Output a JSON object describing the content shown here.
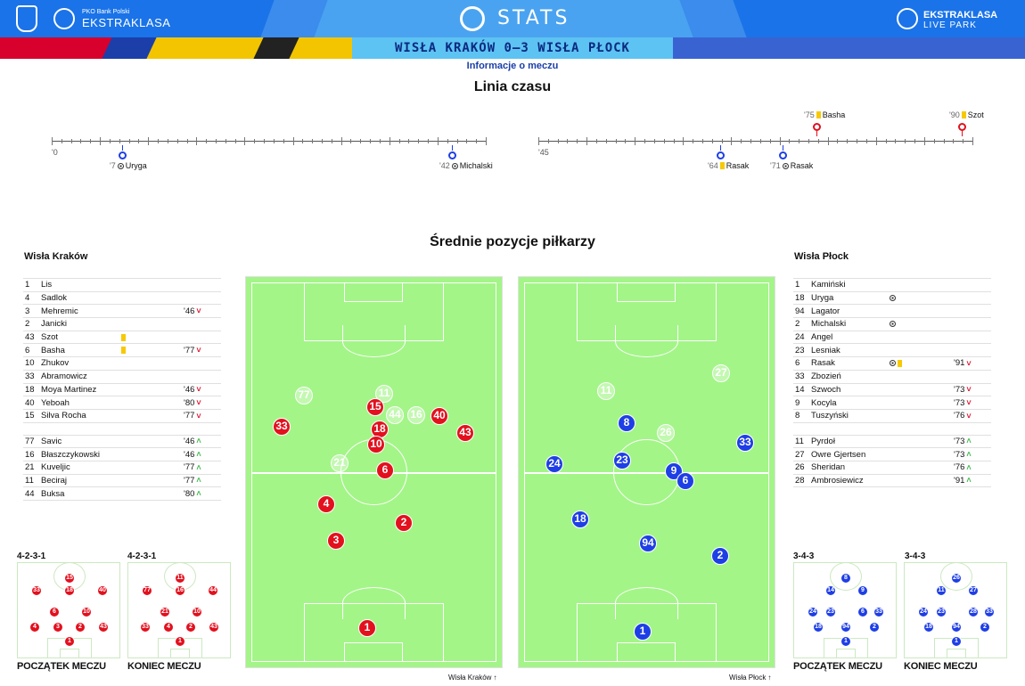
{
  "header": {
    "brand_small": "PKO Bank Polski",
    "brand": "EKSTRAKLASA",
    "stats": "STATS",
    "right_logo_top": "EKSTRAKLASA",
    "right_logo_bottom": "LIVE PARK"
  },
  "match": {
    "title": "WISŁA KRAKÓW 0–3 WISŁA PŁOCK",
    "info": "Informacje o meczu"
  },
  "timeline": {
    "title": "Linia czasu",
    "first_half_start": "'0",
    "second_half_start": "'45",
    "events": [
      {
        "minute": "'7",
        "player": "Uryga",
        "type": "goal",
        "team": "home-side",
        "half": 1
      },
      {
        "minute": "'42",
        "player": "Michalski",
        "type": "goal",
        "half": 1
      },
      {
        "minute": "'64",
        "player": "Rasak",
        "type": "yellow",
        "half": 2
      },
      {
        "minute": "'71",
        "player": "Rasak",
        "type": "goal",
        "half": 2
      },
      {
        "minute": "'75",
        "player": "Basha",
        "type": "yellow",
        "half": 2
      },
      {
        "minute": "'90",
        "player": "Szot",
        "type": "yellow",
        "half": 2
      }
    ]
  },
  "positions_title": "Średnie pozycje piłkarzy",
  "home": {
    "name": "Wisła Kraków",
    "starters": [
      {
        "num": "1",
        "name": "Lis",
        "mark": "",
        "sub": "",
        "dir": ""
      },
      {
        "num": "4",
        "name": "Sadlok",
        "mark": "",
        "sub": "",
        "dir": ""
      },
      {
        "num": "3",
        "name": "Mehremic",
        "mark": "",
        "sub": "'46",
        "dir": "down"
      },
      {
        "num": "2",
        "name": "Janicki",
        "mark": "",
        "sub": "",
        "dir": ""
      },
      {
        "num": "43",
        "name": "Szot",
        "mark": "yellow",
        "sub": "",
        "dir": ""
      },
      {
        "num": "6",
        "name": "Basha",
        "mark": "yellow",
        "sub": "'77",
        "dir": "down"
      },
      {
        "num": "10",
        "name": "Zhukov",
        "mark": "",
        "sub": "",
        "dir": ""
      },
      {
        "num": "33",
        "name": "Abramowicz",
        "mark": "",
        "sub": "",
        "dir": ""
      },
      {
        "num": "18",
        "name": "Moya Martinez",
        "mark": "",
        "sub": "'46",
        "dir": "down"
      },
      {
        "num": "40",
        "name": "Yeboah",
        "mark": "",
        "sub": "'80",
        "dir": "down"
      },
      {
        "num": "15",
        "name": "Silva Rocha",
        "mark": "",
        "sub": "'77",
        "dir": "down"
      }
    ],
    "subs": [
      {
        "num": "77",
        "name": "Savic",
        "sub": "'46",
        "dir": "up"
      },
      {
        "num": "16",
        "name": "Błaszczykowski",
        "sub": "'46",
        "dir": "up"
      },
      {
        "num": "21",
        "name": "Kuveljic",
        "sub": "'77",
        "dir": "up"
      },
      {
        "num": "11",
        "name": "Beciraj",
        "sub": "'77",
        "dir": "up"
      },
      {
        "num": "44",
        "name": "Buksa",
        "sub": "'80",
        "dir": "up"
      }
    ],
    "formation_start": "4-2-3-1",
    "formation_end": "4-2-3-1",
    "footer": "Wisła Kraków"
  },
  "away": {
    "name": "Wisła Płock",
    "starters": [
      {
        "num": "1",
        "name": "Kamiński",
        "mark": "",
        "sub": "",
        "dir": ""
      },
      {
        "num": "18",
        "name": "Uryga",
        "mark": "goal",
        "sub": "",
        "dir": ""
      },
      {
        "num": "94",
        "name": "Lagator",
        "mark": "",
        "sub": "",
        "dir": ""
      },
      {
        "num": "2",
        "name": "Michalski",
        "mark": "goal",
        "sub": "",
        "dir": ""
      },
      {
        "num": "24",
        "name": "Angel",
        "mark": "",
        "sub": "",
        "dir": ""
      },
      {
        "num": "23",
        "name": "Lesniak",
        "mark": "",
        "sub": "",
        "dir": ""
      },
      {
        "num": "6",
        "name": "Rasak",
        "mark": "goal-yellow",
        "sub": "'91",
        "dir": "down"
      },
      {
        "num": "33",
        "name": "Zbozień",
        "mark": "",
        "sub": "",
        "dir": ""
      },
      {
        "num": "14",
        "name": "Szwoch",
        "mark": "",
        "sub": "'73",
        "dir": "down"
      },
      {
        "num": "9",
        "name": "Kocyla",
        "mark": "",
        "sub": "'73",
        "dir": "down"
      },
      {
        "num": "8",
        "name": "Tuszyński",
        "mark": "",
        "sub": "'76",
        "dir": "down"
      }
    ],
    "subs": [
      {
        "num": "11",
        "name": "Pyrdoł",
        "sub": "'73",
        "dir": "up"
      },
      {
        "num": "27",
        "name": "Owre Gjertsen",
        "sub": "'73",
        "dir": "up"
      },
      {
        "num": "26",
        "name": "Sheridan",
        "sub": "'76",
        "dir": "up"
      },
      {
        "num": "28",
        "name": "Ambrosiewicz",
        "sub": "'91",
        "dir": "up"
      }
    ],
    "formation_start": "3-4-3",
    "formation_end": "3-4-3",
    "footer": "Wisła Płock"
  },
  "mini_labels": {
    "start": "POCZĄTEK MECZU",
    "end": "KONIEC MECZU"
  },
  "colors": {
    "home": "#e3101e",
    "away": "#1e3ee6",
    "pitch": "#a3f588"
  }
}
